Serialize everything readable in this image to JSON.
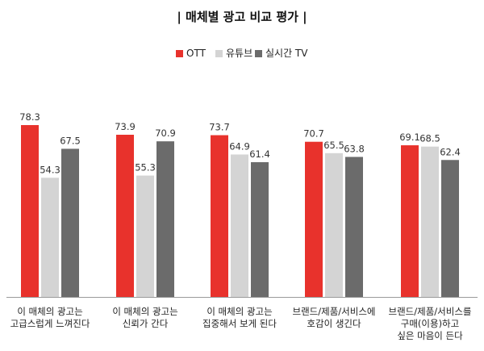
{
  "chart_data": {
    "type": "bar",
    "title": "| 매체별 광고 비교 평가 |",
    "categories": [
      [
        "이 매체의 광고는",
        "고급스럽게 느껴진다"
      ],
      [
        "이 매체의 광고는",
        "신뢰가 간다"
      ],
      [
        "이 매체의 광고는",
        "집중해서 보게 된다"
      ],
      [
        "브랜드/제품/서비스에",
        "호감이 생긴다"
      ],
      [
        "브랜드/제품/서비스를",
        "구매(이용)하고",
        "싶은 마음이 든다"
      ]
    ],
    "series": [
      {
        "name": "OTT",
        "color": "#e8322c",
        "values": [
          78.3,
          73.9,
          73.7,
          70.7,
          69.1
        ]
      },
      {
        "name": "유튜브",
        "color": "#d4d4d4",
        "values": [
          54.3,
          55.3,
          64.9,
          65.5,
          68.5
        ]
      },
      {
        "name": "실시간 TV",
        "color": "#6b6b6b",
        "values": [
          67.5,
          70.9,
          61.4,
          63.8,
          62.4
        ]
      }
    ],
    "ylim": [
      0,
      100
    ],
    "grid": false,
    "legend_position": "top-center"
  }
}
